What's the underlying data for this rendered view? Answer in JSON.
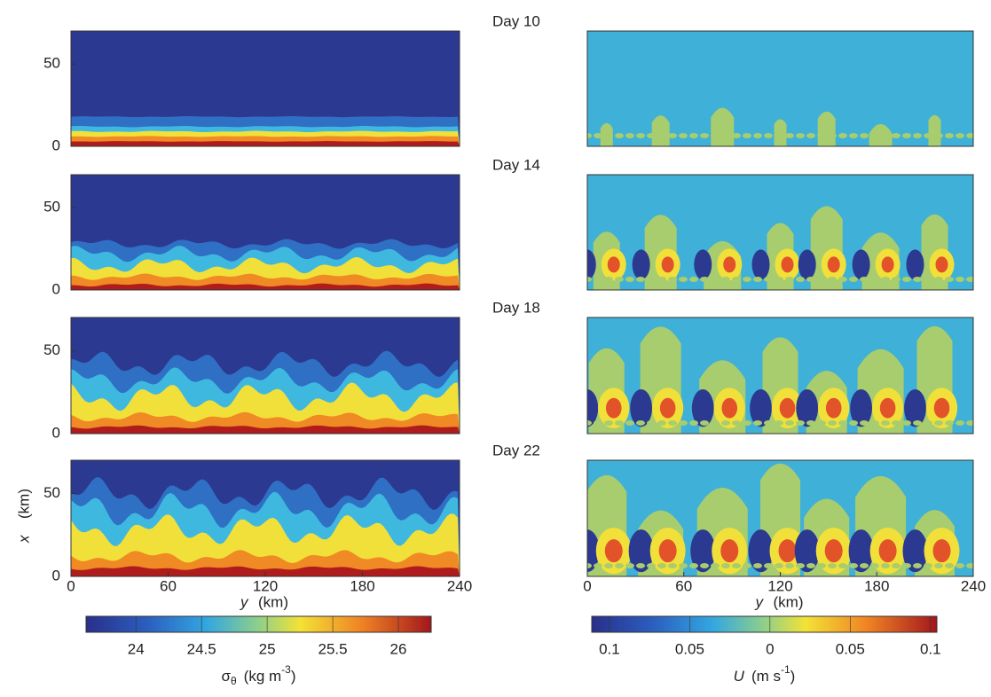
{
  "days": [
    "Day 10",
    "Day 14",
    "Day 18",
    "Day 22"
  ],
  "left_panel": {
    "xlim": [
      0,
      240
    ],
    "xticks": [
      0,
      60,
      120,
      180,
      240
    ],
    "ylim": [
      0,
      70
    ],
    "yticks": [
      0,
      50
    ],
    "xlabel": "y",
    "xunit": "(km)",
    "ylabel": "x",
    "yunit": "(km)"
  },
  "right_panel": {
    "xlim": [
      0,
      240
    ],
    "xticks": [
      0,
      60,
      120,
      180,
      240
    ],
    "xlabel": "y",
    "xunit": "(km)"
  },
  "colorbar_left": {
    "lim": [
      23.62,
      26.25
    ],
    "ticks": [
      24,
      24.5,
      25,
      25.5,
      26
    ],
    "symbol": "σ",
    "sub": "θ",
    "unit": "(kg m",
    "sup": "-3",
    "close": ")"
  },
  "colorbar_right": {
    "lim": [
      -0.111,
      0.104
    ],
    "ticks": [
      {
        "value": -0.1,
        "label": "0.1"
      },
      {
        "value": -0.05,
        "label": "0.05"
      },
      0,
      0.05,
      0.1
    ],
    "symbol": "U",
    "unit": "(m s",
    "sup": "-1",
    "close": ")"
  }
}
